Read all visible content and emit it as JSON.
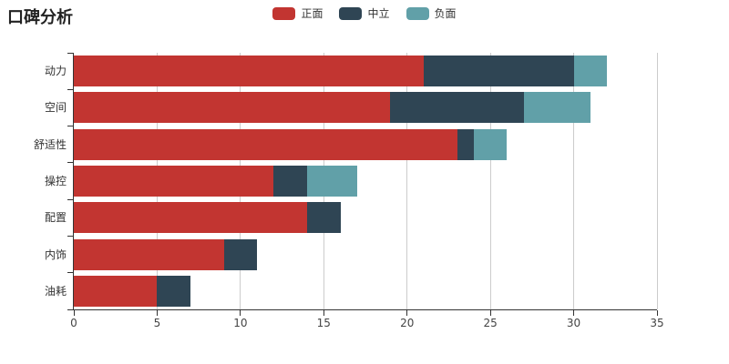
{
  "header": {
    "title": "口碑分析"
  },
  "legend": {
    "items": [
      {
        "label": "正面",
        "color": "#c23531"
      },
      {
        "label": "中立",
        "color": "#2f4554"
      },
      {
        "label": "负面",
        "color": "#61a0a8"
      }
    ]
  },
  "chart_data": {
    "type": "bar",
    "orientation": "horizontal",
    "stacked": true,
    "title": "口碑分析",
    "categories": [
      "动力",
      "空间",
      "舒适性",
      "操控",
      "配置",
      "内饰",
      "油耗"
    ],
    "series": [
      {
        "name": "正面",
        "color": "#c23531",
        "values": [
          21,
          19,
          23,
          12,
          14,
          9,
          5
        ]
      },
      {
        "name": "中立",
        "color": "#2f4554",
        "values": [
          9,
          8,
          1,
          2,
          2,
          2,
          2
        ]
      },
      {
        "name": "负面",
        "color": "#61a0a8",
        "values": [
          2,
          4,
          2,
          3,
          0,
          0,
          0
        ]
      }
    ],
    "totals": [
      32,
      31,
      26,
      17,
      16,
      11,
      7
    ],
    "xlim": [
      0,
      35
    ],
    "xticks": [
      0,
      5,
      10,
      15,
      20,
      25,
      30,
      35
    ],
    "xlabel": "",
    "ylabel": "",
    "grid": true,
    "legend_position": "top-center",
    "colors": {
      "axis": "#333333",
      "gridline": "#cccccc",
      "background": "#ffffff"
    }
  }
}
